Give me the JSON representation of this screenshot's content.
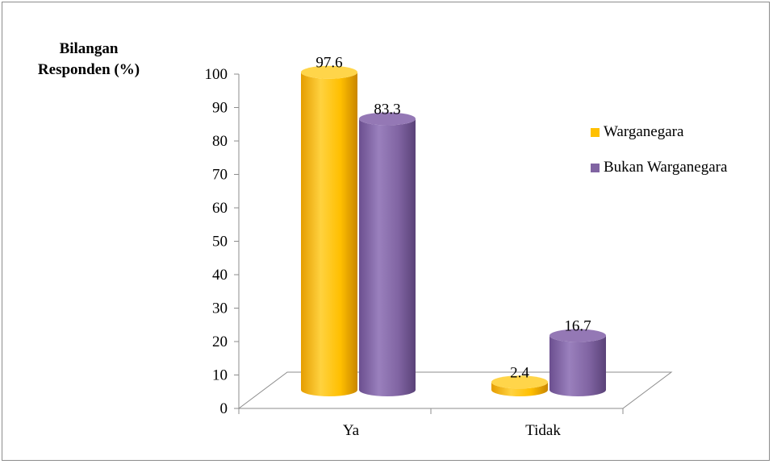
{
  "chart_data": {
    "type": "bar",
    "style": "3d-cylinder",
    "title": "",
    "ylabel_lines": [
      "Bilangan",
      "Responden (%)"
    ],
    "xlabel": "",
    "categories": [
      "Ya",
      "Tidak"
    ],
    "ylim": [
      0,
      100
    ],
    "yticks": [
      0,
      10,
      20,
      30,
      40,
      50,
      60,
      70,
      80,
      90,
      100
    ],
    "series": [
      {
        "name": "Warganegara",
        "values": [
          97.6,
          2.4
        ],
        "color": "#FFC000"
      },
      {
        "name": "Bukan Warganegara",
        "values": [
          83.3,
          16.7
        ],
        "color": "#8064A2"
      }
    ],
    "data_labels": [
      [
        "97.6",
        "2.4"
      ],
      [
        "83.3",
        "16.7"
      ]
    ],
    "legend": "right",
    "grid": false
  }
}
